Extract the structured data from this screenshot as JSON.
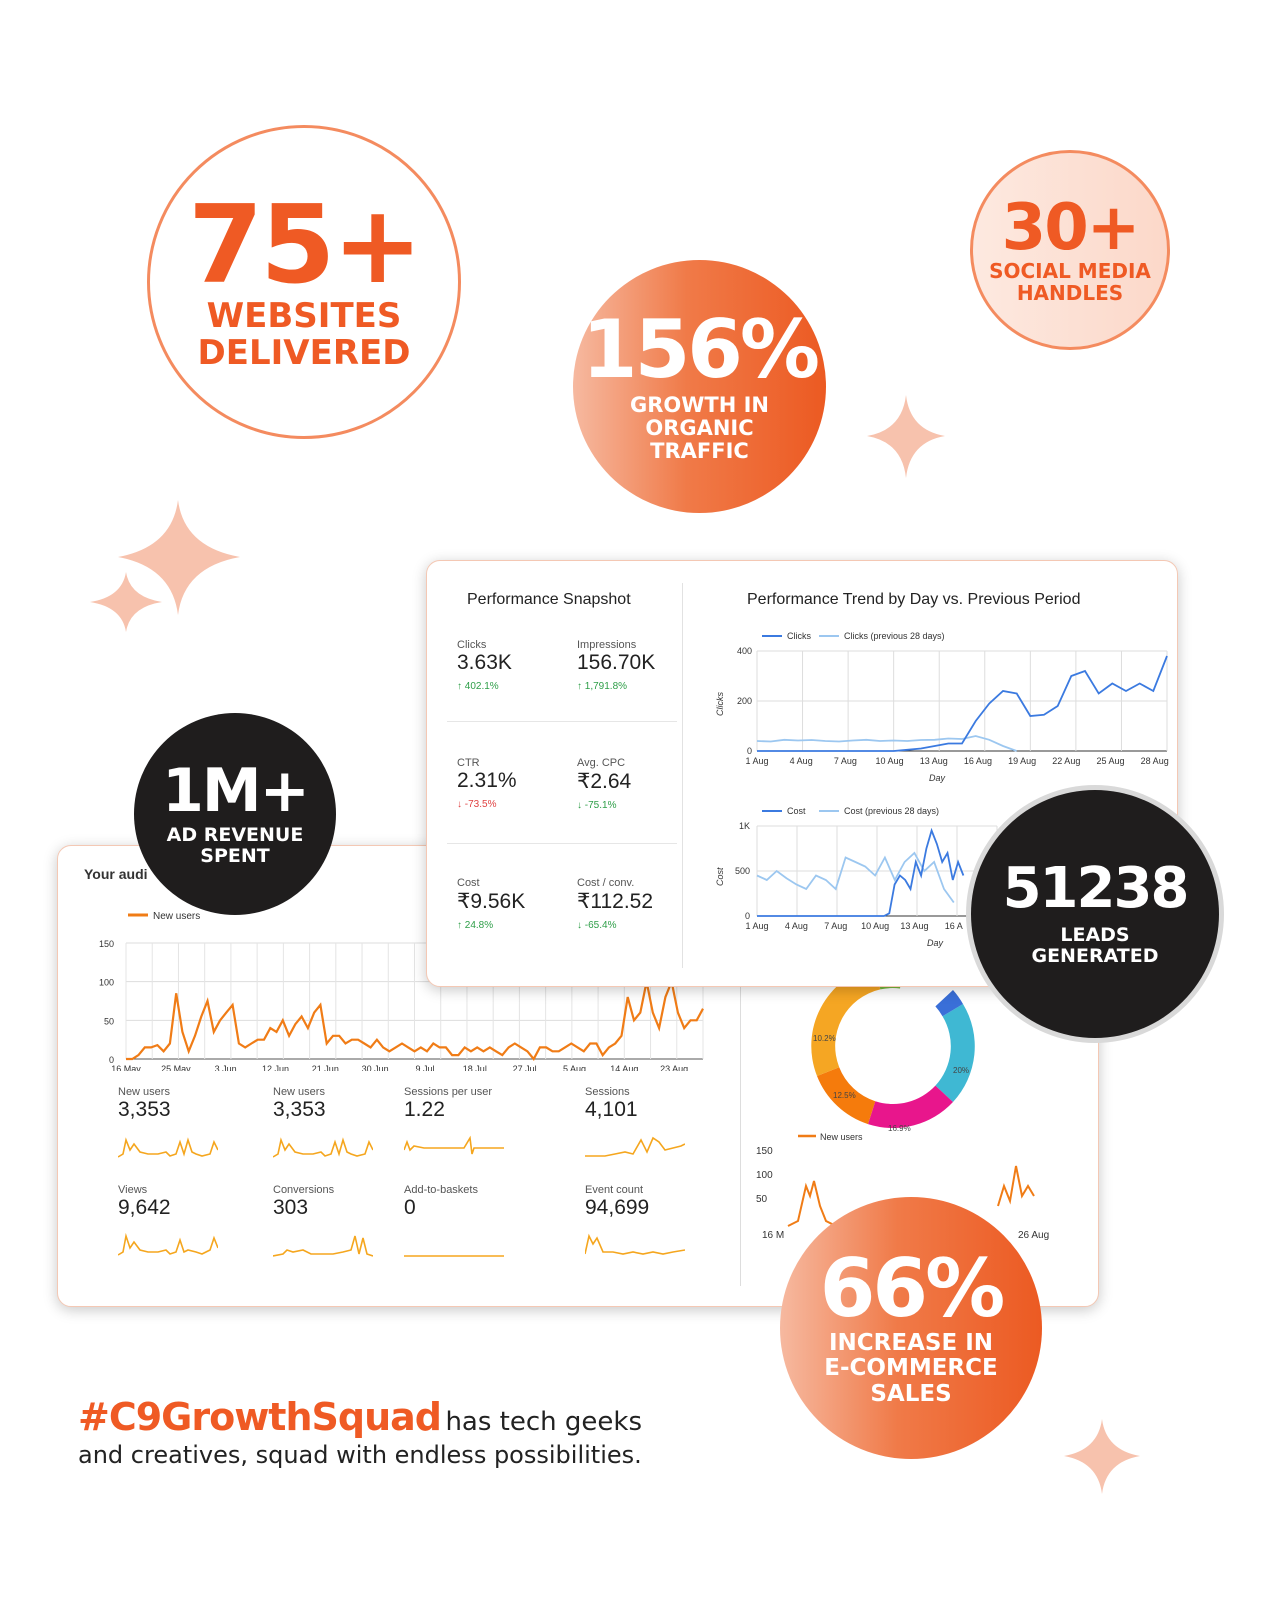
{
  "stats": {
    "websites": {
      "number": "75+",
      "label_1": "WEBSITES",
      "label_2": "DELIVERED"
    },
    "social": {
      "number": "30+",
      "label_1": "SOCIAL MEDIA",
      "label_2": "HANDLES"
    },
    "organic": {
      "number": "156%",
      "label_1": "GROWTH IN",
      "label_2": "ORGANIC",
      "label_3": "TRAFFIC"
    },
    "ad_revenue": {
      "number": "1M+",
      "label_1": "AD REVENUE",
      "label_2": "SPENT"
    },
    "leads": {
      "number": "51238",
      "label_1": "LEADS",
      "label_2": "GENERATED"
    },
    "ecommerce": {
      "number": "66%",
      "label_1": "INCREASE IN",
      "label_2": "E-COMMERCE",
      "label_3": "SALES"
    }
  },
  "snapshot": {
    "title": "Performance Snapshot",
    "metrics": [
      {
        "label": "Clicks",
        "value": "3.63K",
        "delta": "402.1%",
        "dir": "up"
      },
      {
        "label": "Impressions",
        "value": "156.70K",
        "delta": "1,791.8%",
        "dir": "up"
      },
      {
        "label": "CTR",
        "value": "2.31%",
        "delta": "-73.5%",
        "dir": "down-red"
      },
      {
        "label": "Avg. CPC",
        "value": "₹2.64",
        "delta": "-75.1%",
        "dir": "down-green"
      },
      {
        "label": "Cost",
        "value": "₹9.56K",
        "delta": "24.8%",
        "dir": "up"
      },
      {
        "label": "Cost / conv.",
        "value": "₹112.52",
        "delta": "-65.4%",
        "dir": "down-green"
      }
    ]
  },
  "trend": {
    "title": "Performance Trend by Day vs. Previous Period",
    "clicks_legend": "Clicks",
    "clicks_prev_legend": "Clicks (previous 28 days)",
    "clicks_axis": "Clicks",
    "clicks_yticks": [
      "400",
      "200",
      "0"
    ],
    "xticks": [
      "1 Aug",
      "4 Aug",
      "7 Aug",
      "10 Aug",
      "13 Aug",
      "16 Aug",
      "19 Aug",
      "22 Aug",
      "25 Aug",
      "28 Aug"
    ],
    "x_axis": "Day",
    "cost_legend": "Cost",
    "cost_prev_legend": "Cost (previous 28 days)",
    "cost_axis": "Cost",
    "cost_yticks": [
      "1K",
      "500",
      "0"
    ],
    "cost_xticks": [
      "1 Aug",
      "4 Aug",
      "7 Aug",
      "10 Aug",
      "13 Aug",
      "16 A"
    ]
  },
  "audience": {
    "title_partial": "Your audi",
    "legend": "New users",
    "yticks": [
      "150",
      "100",
      "50",
      "0"
    ],
    "xticks": [
      "16 May",
      "25 May",
      "3 Jun",
      "12 Jun",
      "21 Jun",
      "30 Jun",
      "9 Jul",
      "18 Jul",
      "27 Jul",
      "5 Aug",
      "14 Aug",
      "23 Aug"
    ],
    "metrics": [
      {
        "label": "New users",
        "value": "3,353"
      },
      {
        "label": "New users",
        "value": "3,353"
      },
      {
        "label": "Sessions per user",
        "value": "1.22"
      },
      {
        "label": "Sessions",
        "value": "4,101"
      },
      {
        "label": "Views",
        "value": "9,642"
      },
      {
        "label": "Conversions",
        "value": "303"
      },
      {
        "label": "Add-to-baskets",
        "value": "0"
      },
      {
        "label": "Event count",
        "value": "94,699"
      }
    ],
    "donut_labels": [
      "10.2%",
      "12.5%",
      "16.9%",
      "20%"
    ],
    "mini_legend": "New users",
    "mini_yticks": [
      "150",
      "100",
      "50"
    ],
    "mini_xticks": [
      "16 M",
      "26 Aug"
    ]
  },
  "footer": {
    "hashtag": "#C9GrowthSquad",
    "line_1": "has tech geeks",
    "line_2": "and creatives, squad with endless possibilities."
  },
  "colors": {
    "accent": "#ef5a24",
    "dark": "#1f1d1d",
    "clicks": "#3b7ae0",
    "clicks_prev": "#9cc7f0",
    "audience_line": "#f07c16"
  },
  "chart_data": [
    {
      "type": "line",
      "title": "",
      "series": [
        {
          "name": "Clicks",
          "values": [
            0,
            0,
            0,
            0,
            0,
            0,
            0,
            0,
            0,
            0,
            0,
            5,
            10,
            20,
            30,
            30,
            120,
            190,
            240,
            230,
            140,
            145,
            180,
            300,
            320,
            230,
            270,
            240,
            270,
            240,
            380
          ]
        },
        {
          "name": "Clicks (previous 28 days)",
          "values": [
            40,
            38,
            45,
            42,
            44,
            40,
            38,
            42,
            45,
            40,
            42,
            40,
            44,
            45,
            50,
            48,
            60,
            45,
            20,
            0
          ]
        }
      ],
      "ylabel": "Clicks",
      "ylim": [
        0,
        400
      ]
    },
    {
      "type": "line",
      "title": "",
      "series": [
        {
          "name": "Cost",
          "values": [
            0,
            0,
            0,
            0,
            0,
            0,
            0,
            0,
            0,
            0,
            0,
            0,
            0,
            0,
            0,
            0,
            0,
            0,
            0,
            0,
            0,
            0,
            0,
            0,
            0,
            30,
            350,
            450,
            400,
            300,
            600,
            450,
            750,
            950,
            800,
            600,
            700,
            400,
            600,
            450
          ]
        },
        {
          "name": "Cost (previous 28 days)",
          "values": [
            450,
            400,
            500,
            420,
            350,
            300,
            450,
            400,
            300,
            650,
            600,
            550,
            450,
            650,
            400,
            600,
            700,
            500,
            600,
            300,
            150
          ]
        }
      ],
      "ylabel": "Cost",
      "ylim": [
        0,
        1000
      ]
    },
    {
      "type": "line",
      "title": "",
      "series": [
        {
          "name": "New users",
          "values": [
            0,
            0,
            5,
            15,
            15,
            18,
            10,
            20,
            85,
            35,
            10,
            30,
            55,
            75,
            35,
            50,
            60,
            70,
            20,
            15,
            20,
            25,
            25,
            40,
            35,
            50,
            30,
            45,
            55,
            40,
            60,
            70,
            20,
            30,
            30,
            20,
            25,
            25,
            20,
            15,
            25,
            15,
            10,
            15,
            20,
            15,
            10,
            15,
            10,
            20,
            15,
            15,
            5,
            5,
            15,
            10,
            15,
            10,
            15,
            10,
            5,
            15,
            20,
            15,
            10,
            0,
            15,
            15,
            10,
            10,
            15,
            20,
            15,
            10,
            20,
            20,
            5,
            15,
            20,
            30,
            80,
            50,
            60,
            100,
            60,
            40,
            80,
            100,
            60,
            40,
            50,
            50,
            65
          ]
        }
      ],
      "ylim": [
        0,
        150
      ]
    },
    {
      "type": "pie",
      "title": "",
      "values": [
        10.2,
        12.5,
        16.9,
        20
      ],
      "labels": [
        "10.2%",
        "12.5%",
        "16.9%",
        "20%"
      ]
    }
  ]
}
